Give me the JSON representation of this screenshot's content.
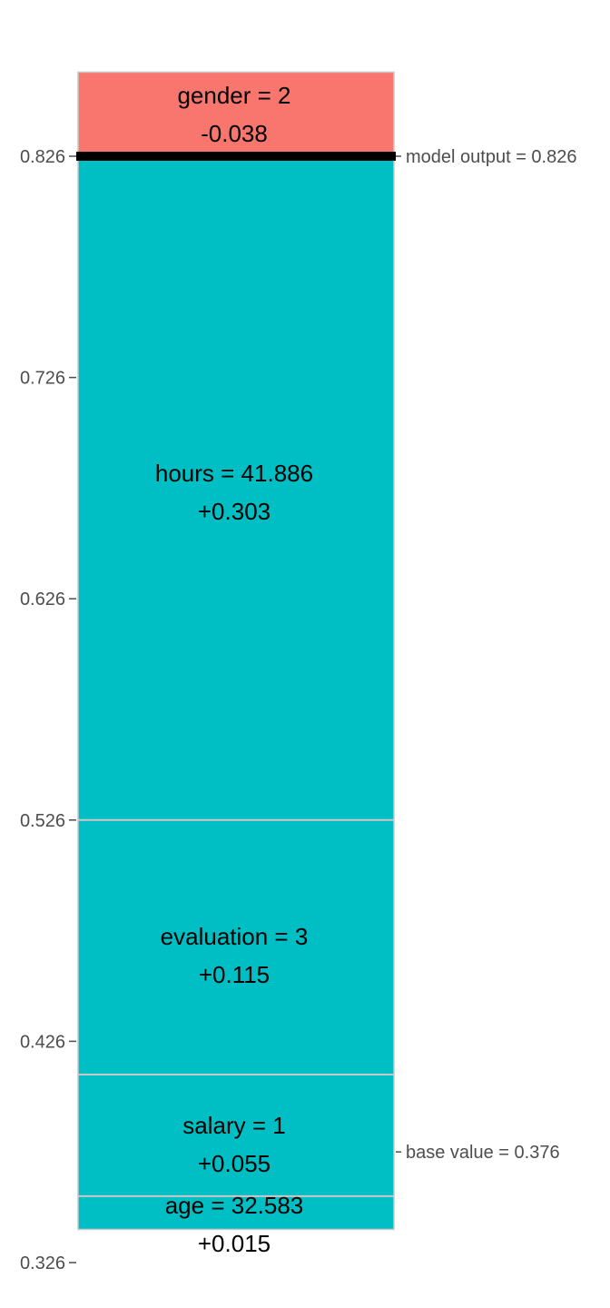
{
  "chart_data": {
    "type": "bar",
    "subtype": "stacked-waterfall",
    "base_value": 0.376,
    "model_output": 0.826,
    "base_label": "base value = 0.376",
    "output_label": "model output = 0.826",
    "ylim": [
      0.326,
      0.865
    ],
    "ticks": [
      {
        "value": 0.326,
        "label": "0.326"
      },
      {
        "value": 0.426,
        "label": "0.426"
      },
      {
        "value": 0.526,
        "label": "0.526"
      },
      {
        "value": 0.626,
        "label": "0.626"
      },
      {
        "value": 0.726,
        "label": "0.726"
      },
      {
        "value": 0.826,
        "label": "0.826"
      }
    ],
    "segments": [
      {
        "feature": "age = 32.583",
        "contribution": "+0.015",
        "from": 0.341,
        "to": 0.356,
        "color": "#00BFC4"
      },
      {
        "feature": "salary = 1",
        "contribution": "+0.055",
        "from": 0.356,
        "to": 0.411,
        "color": "#00BFC4"
      },
      {
        "feature": "evaluation = 3",
        "contribution": "+0.115",
        "from": 0.411,
        "to": 0.526,
        "color": "#00BFC4"
      },
      {
        "feature": "hours = 41.886",
        "contribution": "+0.303",
        "from": 0.526,
        "to": 0.829,
        "color": "#00BFC4"
      },
      {
        "feature": "gender = 2",
        "contribution": "-0.038",
        "from": 0.826,
        "to": 0.864,
        "color": "#F8766D"
      }
    ],
    "colors": {
      "positive": "#00BFC4",
      "negative": "#F8766D",
      "divider": "#c8c8c8",
      "output_line": "#000000"
    }
  }
}
